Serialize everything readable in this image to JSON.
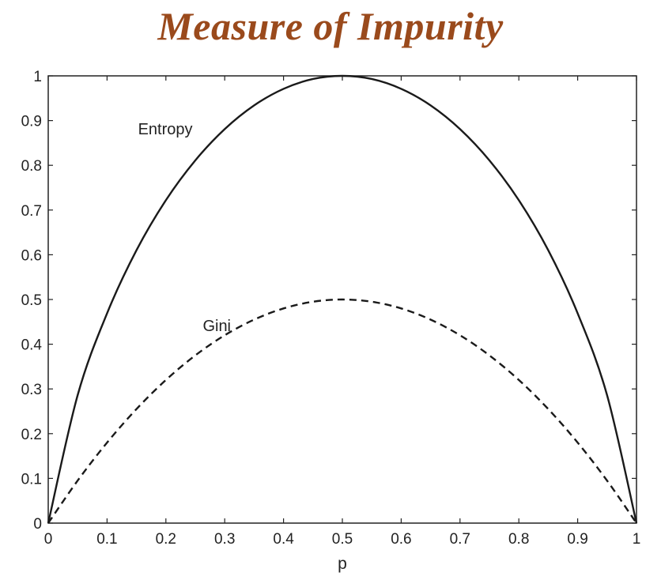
{
  "title": "Measure of Impurity",
  "colors": {
    "title": "#9a4a1c",
    "axis": "#222222",
    "curve": "#1a1a1a"
  },
  "chart_data": {
    "type": "line",
    "title": "Measure of Impurity",
    "xlabel": "p",
    "ylabel": "",
    "xlim": [
      0,
      1
    ],
    "ylim": [
      0,
      1
    ],
    "grid": false,
    "xticks": [
      "0",
      "0.1",
      "0.2",
      "0.3",
      "0.4",
      "0.5",
      "0.6",
      "0.7",
      "0.8",
      "0.9",
      "1"
    ],
    "yticks": [
      "0",
      "0.1",
      "0.2",
      "0.3",
      "0.4",
      "0.5",
      "0.6",
      "0.7",
      "0.8",
      "0.9",
      "1"
    ],
    "x": [
      0,
      0.05,
      0.1,
      0.15,
      0.2,
      0.25,
      0.3,
      0.35,
      0.4,
      0.45,
      0.5,
      0.55,
      0.6,
      0.65,
      0.7,
      0.75,
      0.8,
      0.85,
      0.9,
      0.95,
      1
    ],
    "series": [
      {
        "name": "Entropy",
        "style": "solid",
        "values": [
          0,
          0.286,
          0.469,
          0.61,
          0.722,
          0.811,
          0.881,
          0.934,
          0.971,
          0.993,
          1,
          0.993,
          0.971,
          0.934,
          0.881,
          0.811,
          0.722,
          0.61,
          0.469,
          0.286,
          0
        ],
        "label_at": [
          0.15,
          0.88
        ]
      },
      {
        "name": "Gini",
        "style": "dashed",
        "values": [
          0,
          0.095,
          0.18,
          0.255,
          0.32,
          0.375,
          0.42,
          0.455,
          0.48,
          0.495,
          0.5,
          0.495,
          0.48,
          0.455,
          0.42,
          0.375,
          0.32,
          0.255,
          0.18,
          0.095,
          0
        ],
        "label_at": [
          0.26,
          0.44
        ]
      }
    ]
  }
}
